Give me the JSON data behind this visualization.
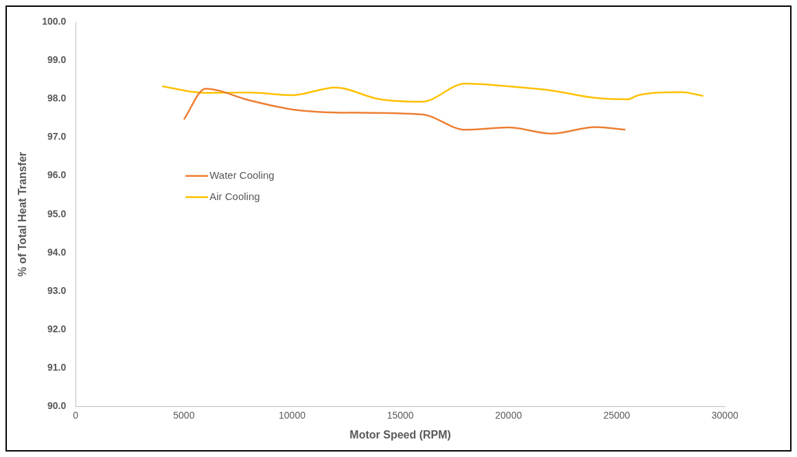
{
  "chart_data": {
    "type": "line",
    "xlabel": "Motor Speed (RPM)",
    "ylabel": "% of Total Heat Transfer",
    "xlim": [
      0,
      30000
    ],
    "xticks": [
      0,
      5000,
      10000,
      15000,
      20000,
      25000,
      30000
    ],
    "ylim": [
      90,
      100
    ],
    "yticks": [
      {
        "value": 90,
        "label": "90.0"
      },
      {
        "value": 91,
        "label": "91.0"
      },
      {
        "value": 92,
        "label": "92.0"
      },
      {
        "value": 93,
        "label": "93.0"
      },
      {
        "value": 94,
        "label": "94.0"
      },
      {
        "value": 95,
        "label": "95.0"
      },
      {
        "value": 96,
        "label": "96.0"
      },
      {
        "value": 97,
        "label": "97.0"
      },
      {
        "value": 98,
        "label": "98.0"
      },
      {
        "value": 99,
        "label": "99.0"
      },
      {
        "value": 100,
        "label": "100.0"
      }
    ],
    "grid": false,
    "legend": "left",
    "marker": "none",
    "line_style": "solid",
    "series": [
      {
        "name": "Water Cooling",
        "color": "#ed7d31",
        "x": [
          5000,
          6000,
          8000,
          10000,
          12000,
          16000,
          18000,
          20000,
          22000,
          24000,
          25400
        ],
        "values": [
          97.47,
          98.27,
          97.97,
          97.73,
          97.65,
          97.6,
          97.2,
          97.26,
          97.1,
          97.27,
          97.2
        ]
      },
      {
        "name": "Air Cooling",
        "color": "#ffc000",
        "x": [
          4000,
          6000,
          8000,
          10000,
          12000,
          14000,
          16000,
          18000,
          20000,
          22000,
          24000,
          25500,
          26000,
          28000,
          29000
        ],
        "values": [
          98.33,
          98.16,
          98.17,
          98.1,
          98.3,
          98.0,
          97.93,
          98.4,
          98.33,
          98.22,
          98.03,
          97.99,
          98.1,
          98.18,
          98.08
        ]
      }
    ]
  }
}
